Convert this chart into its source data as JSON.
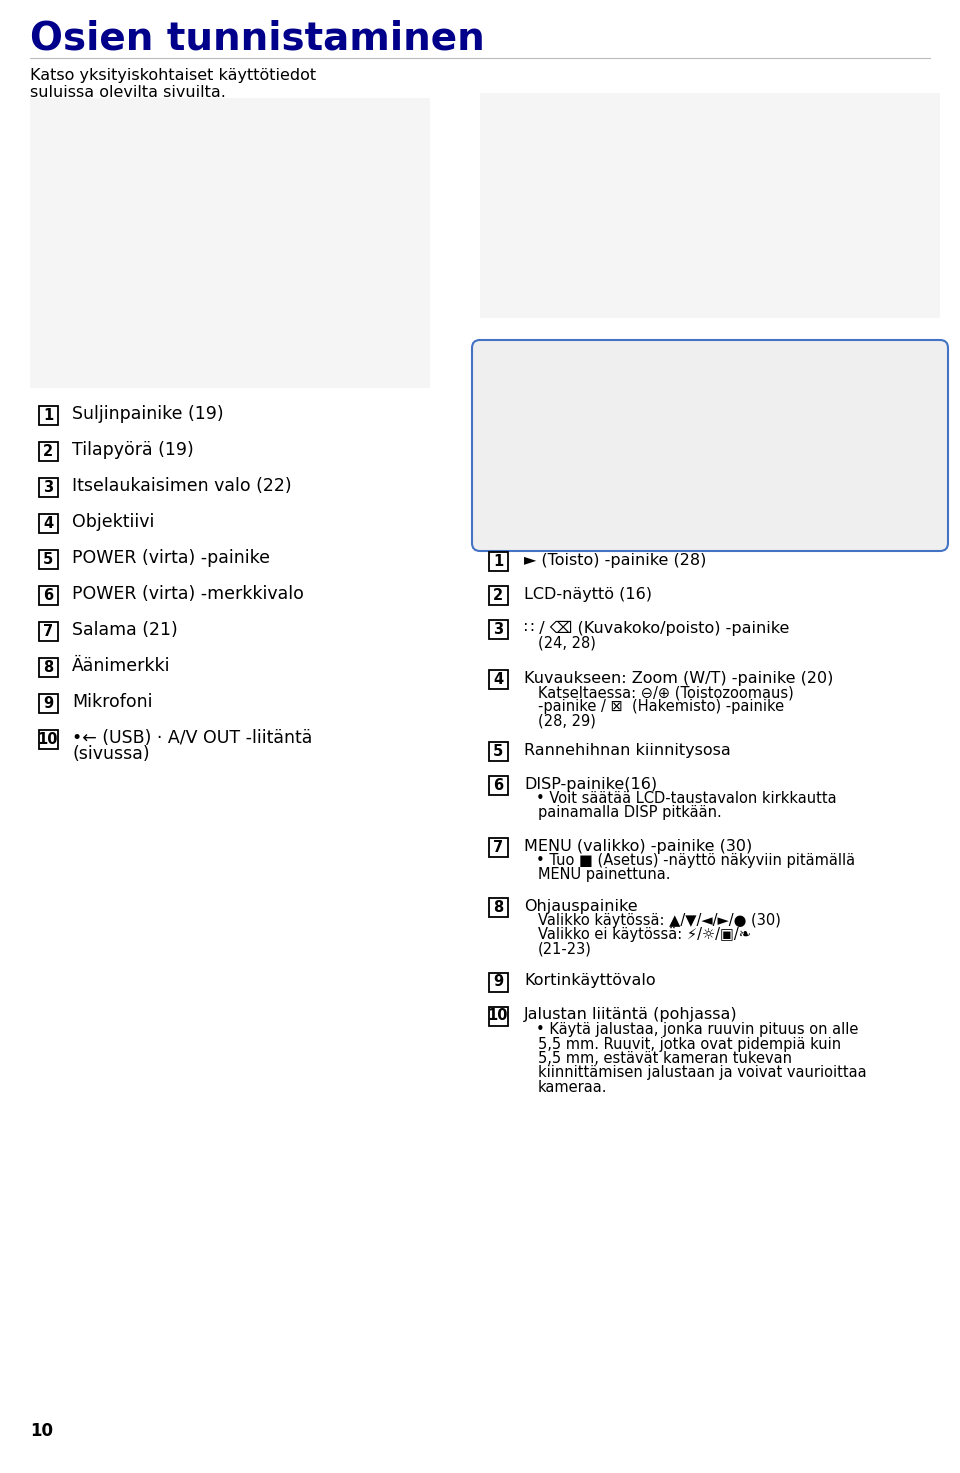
{
  "title": "Osien tunnistaminen",
  "title_color": "#00008B",
  "subtitle_line1": "Katso yksityiskohtaiset käyttötiedot",
  "subtitle_line2": "suluissa olevilta sivuilta.",
  "bg_color": "#ffffff",
  "text_color": "#000000",
  "box_color": "#000000",
  "page_num": "10",
  "left_items": [
    {
      "num": "1",
      "lines": [
        "Suljinpainike (19)"
      ]
    },
    {
      "num": "2",
      "lines": [
        "Tilapyörä (19)"
      ]
    },
    {
      "num": "3",
      "lines": [
        "Itselaukaisimen valo (22)"
      ]
    },
    {
      "num": "4",
      "lines": [
        "Objektiivi"
      ]
    },
    {
      "num": "5",
      "lines": [
        "POWER (virta) -painike"
      ]
    },
    {
      "num": "6",
      "lines": [
        "POWER (virta) -merkkivalo"
      ]
    },
    {
      "num": "7",
      "lines": [
        "Salama (21)"
      ]
    },
    {
      "num": "8",
      "lines": [
        "Äänimerkki"
      ]
    },
    {
      "num": "9",
      "lines": [
        "Mikrofoni"
      ]
    },
    {
      "num": "10",
      "lines": [
        "•← (USB) · A/V OUT -liitäntä",
        "(sivussa)"
      ]
    }
  ],
  "right_items": [
    {
      "num": "1",
      "lines": [
        "► (Toisto) -painike (28)"
      ]
    },
    {
      "num": "2",
      "lines": [
        "LCD-näyttö (16)"
      ]
    },
    {
      "num": "3",
      "lines": [
        "∷ / ⌫ (Kuvakoko/poisto) -painike",
        "(24, 28)"
      ]
    },
    {
      "num": "4",
      "lines": [
        "Kuvaukseen: Zoom (W/T) -painike (20)",
        "Katseltaessa: ⊖/⊕ (Toistozoomaus)",
        "-painike / ⊠  (Hakemisto) -painike",
        "(28, 29)"
      ]
    },
    {
      "num": "5",
      "lines": [
        "Rannehihnan kiinnitysosa"
      ]
    },
    {
      "num": "6",
      "lines": [
        "DISP-painike(16)",
        "• Voit säätää LCD-taustavalon kirkkautta",
        "painamalla DISP pitkään."
      ]
    },
    {
      "num": "7",
      "lines": [
        "MENU (valikko) -painike (30)",
        "• Tuo ■ (Asetus) -näyttö näkyviin pitämällä",
        "MENU painettuna."
      ]
    },
    {
      "num": "8",
      "lines": [
        "Ohjauspainike",
        "Valikko käytössä: ▲/▼/◄/►/● (30)",
        "Valikko ei käytössä: ⚡/☼/▣/❧",
        "(21-23)"
      ]
    },
    {
      "num": "9",
      "lines": [
        "Kortinkäyttövalo"
      ]
    },
    {
      "num": "10",
      "lines": [
        "Jalustan liitäntä (pohjassa)",
        "• Käytä jalustaa, jonka ruuvin pituus on alle",
        "5,5 mm. Ruuvit, jotka ovat pidempiä kuin",
        "5,5 mm, estävät kameran tukevan",
        "kiinnittämisen jalustaan ja voivat vaurioittaa",
        "kameraa."
      ]
    }
  ]
}
